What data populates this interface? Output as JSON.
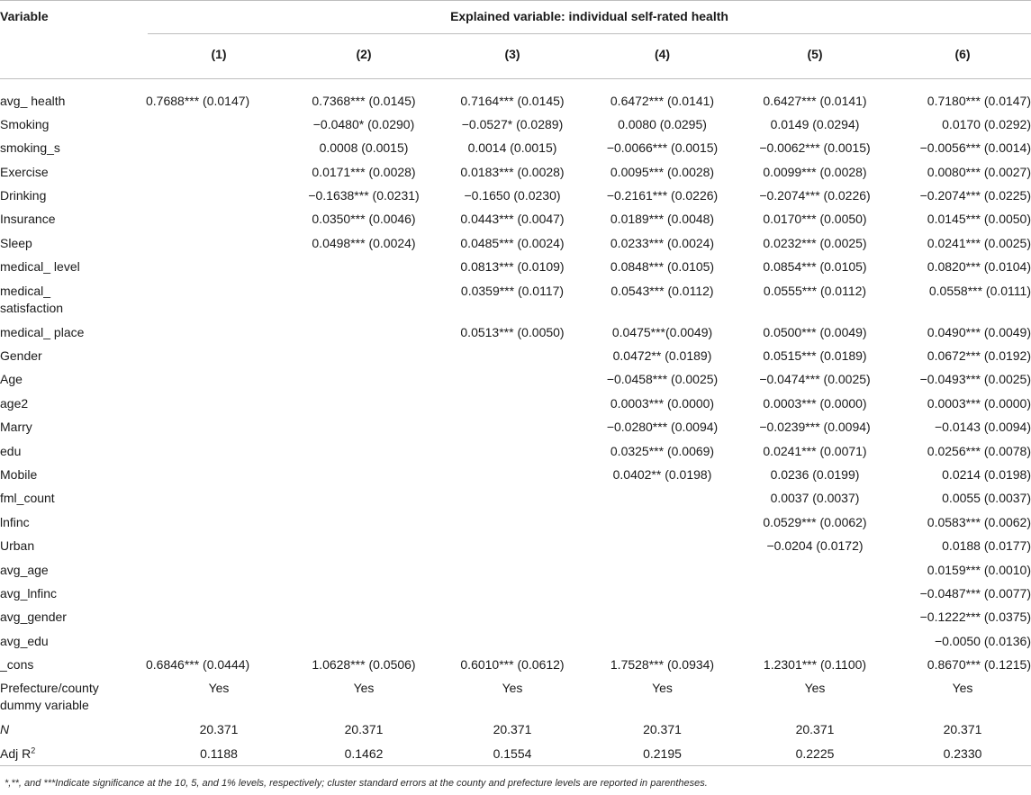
{
  "header": {
    "variable_label": "Variable",
    "explained_label": "Explained variable: individual self-rated health",
    "models": [
      "(1)",
      "(2)",
      "(3)",
      "(4)",
      "(5)",
      "(6)"
    ]
  },
  "rows": [
    {
      "label": "avg_ health",
      "cells": [
        "0.7688*** (0.0147)",
        "0.7368*** (0.0145)",
        "0.7164*** (0.0145)",
        "0.6472*** (0.0141)",
        "0.6427*** (0.0141)",
        "0.7180*** (0.0147)"
      ]
    },
    {
      "label": "Smoking",
      "cells": [
        "",
        "−0.0480* (0.0290)",
        "−0.0527* (0.0289)",
        "0.0080 (0.0295)",
        "0.0149 (0.0294)",
        "0.0170 (0.0292)"
      ]
    },
    {
      "label": "smoking_s",
      "cells": [
        "",
        "0.0008 (0.0015)",
        "0.0014 (0.0015)",
        "−0.0066*** (0.0015)",
        "−0.0062*** (0.0015)",
        "−0.0056*** (0.0014)"
      ]
    },
    {
      "label": "Exercise",
      "cells": [
        "",
        "0.0171*** (0.0028)",
        "0.0183*** (0.0028)",
        "0.0095*** (0.0028)",
        "0.0099*** (0.0028)",
        "0.0080*** (0.0027)"
      ]
    },
    {
      "label": "Drinking",
      "cells": [
        "",
        "−0.1638*** (0.0231)",
        "−0.1650 (0.0230)",
        "−0.2161*** (0.0226)",
        "−0.2074*** (0.0226)",
        "−0.2074*** (0.0225)"
      ]
    },
    {
      "label": "Insurance",
      "cells": [
        "",
        "0.0350*** (0.0046)",
        "0.0443*** (0.0047)",
        "0.0189*** (0.0048)",
        "0.0170*** (0.0050)",
        "0.0145*** (0.0050)"
      ]
    },
    {
      "label": "Sleep",
      "cells": [
        "",
        "0.0498*** (0.0024)",
        "0.0485*** (0.0024)",
        "0.0233*** (0.0024)",
        "0.0232*** (0.0025)",
        "0.0241*** (0.0025)"
      ]
    },
    {
      "label": "medical_ level",
      "cells": [
        "",
        "",
        "0.0813*** (0.0109)",
        "0.0848*** (0.0105)",
        "0.0854*** (0.0105)",
        "0.0820*** (0.0104)"
      ]
    },
    {
      "label": "medical_ satisfaction",
      "label_l1": "medical_",
      "label_l2": "satisfaction",
      "cells": [
        "",
        "",
        "0.0359*** (0.0117)",
        "0.0543*** (0.0112)",
        "0.0555*** (0.0112)",
        "0.0558*** (0.0111)"
      ]
    },
    {
      "label": "medical_ place",
      "cells": [
        "",
        "",
        "0.0513*** (0.0050)",
        "0.0475***(0.0049)",
        "0.0500*** (0.0049)",
        "0.0490*** (0.0049)"
      ]
    },
    {
      "label": "Gender",
      "cells": [
        "",
        "",
        "",
        "0.0472** (0.0189)",
        "0.0515*** (0.0189)",
        "0.0672*** (0.0192)"
      ]
    },
    {
      "label": "Age",
      "cells": [
        "",
        "",
        "",
        "−0.0458*** (0.0025)",
        "−0.0474*** (0.0025)",
        "−0.0493*** (0.0025)"
      ]
    },
    {
      "label": "age2",
      "cells": [
        "",
        "",
        "",
        "0.0003*** (0.0000)",
        "0.0003*** (0.0000)",
        "0.0003*** (0.0000)"
      ]
    },
    {
      "label": "Marry",
      "cells": [
        "",
        "",
        "",
        "−0.0280*** (0.0094)",
        "−0.0239*** (0.0094)",
        "−0.0143 (0.0094)"
      ]
    },
    {
      "label": "edu",
      "cells": [
        "",
        "",
        "",
        "0.0325*** (0.0069)",
        "0.0241*** (0.0071)",
        "0.0256*** (0.0078)"
      ]
    },
    {
      "label": "Mobile",
      "cells": [
        "",
        "",
        "",
        "0.0402** (0.0198)",
        "0.0236 (0.0199)",
        "0.0214 (0.0198)"
      ]
    },
    {
      "label": "fml_count",
      "cells": [
        "",
        "",
        "",
        "",
        "0.0037 (0.0037)",
        "0.0055 (0.0037)"
      ]
    },
    {
      "label": "lnfinc",
      "cells": [
        "",
        "",
        "",
        "",
        "0.0529*** (0.0062)",
        "0.0583*** (0.0062)"
      ]
    },
    {
      "label": "Urban",
      "cells": [
        "",
        "",
        "",
        "",
        "−0.0204 (0.0172)",
        "0.0188 (0.0177)"
      ]
    },
    {
      "label": "avg_age",
      "cells": [
        "",
        "",
        "",
        "",
        "",
        "0.0159*** (0.0010)"
      ]
    },
    {
      "label": "avg_lnfinc",
      "cells": [
        "",
        "",
        "",
        "",
        "",
        "−0.0487*** (0.0077)"
      ]
    },
    {
      "label": "avg_gender",
      "cells": [
        "",
        "",
        "",
        "",
        "",
        "−0.1222*** (0.0375)"
      ]
    },
    {
      "label": "avg_edu",
      "cells": [
        "",
        "",
        "",
        "",
        "",
        "−0.0050 (0.0136)"
      ]
    },
    {
      "label": "_cons",
      "cells": [
        "0.6846*** (0.0444)",
        "1.0628*** (0.0506)",
        "0.6010*** (0.0612)",
        "1.7528*** (0.0934)",
        "1.2301*** (0.1100)",
        "0.8670*** (0.1215)"
      ]
    }
  ],
  "dummy_row": {
    "label_l1": "Prefecture/county",
    "label_l2": "dummy variable",
    "cells": [
      "Yes",
      "Yes",
      "Yes",
      "Yes",
      "Yes",
      "Yes"
    ]
  },
  "n_row": {
    "label": "N",
    "cells": [
      "20.371",
      "20.371",
      "20.371",
      "20.371",
      "20.371",
      "20.371"
    ]
  },
  "adj_row": {
    "label": "Adj R",
    "label_sup": "2",
    "cells": [
      "0.1188",
      "0.1462",
      "0.1554",
      "0.2195",
      "0.2225",
      "0.2330"
    ]
  },
  "footnote": "*,**, and ***Indicate significance at the 10, 5, and 1% levels, respectively; cluster standard errors at the county and prefecture levels are reported in parentheses."
}
